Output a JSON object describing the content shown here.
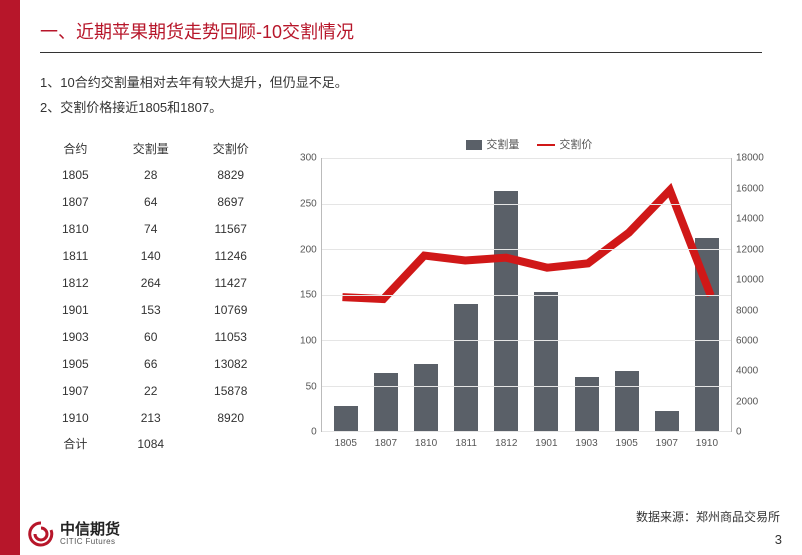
{
  "brand_color": "#b7162a",
  "title": "一、近期苹果期货走势回顾-10交割情况",
  "bullets": [
    "1、10合约交割量相对去年有较大提升，但仍显不足。",
    "2、交割价格接近1805和1807。"
  ],
  "table": {
    "headers": [
      "合约",
      "交割量",
      "交割价"
    ],
    "rows": [
      [
        "1805",
        "28",
        "8829"
      ],
      [
        "1807",
        "64",
        "8697"
      ],
      [
        "1810",
        "74",
        "11567"
      ],
      [
        "1811",
        "140",
        "11246"
      ],
      [
        "1812",
        "264",
        "11427"
      ],
      [
        "1901",
        "153",
        "10769"
      ],
      [
        "1903",
        "60",
        "11053"
      ],
      [
        "1905",
        "66",
        "13082"
      ],
      [
        "1907",
        "22",
        "15878"
      ],
      [
        "1910",
        "213",
        "8920"
      ]
    ],
    "footer": [
      "合计",
      "1084",
      ""
    ]
  },
  "chart": {
    "type": "bar+line",
    "legend": {
      "bar": "交割量",
      "line": "交割价"
    },
    "categories": [
      "1805",
      "1807",
      "1810",
      "1811",
      "1812",
      "1901",
      "1903",
      "1905",
      "1907",
      "1910"
    ],
    "bar_values": [
      28,
      64,
      74,
      140,
      264,
      153,
      60,
      66,
      22,
      213
    ],
    "line_values": [
      8829,
      8697,
      11567,
      11246,
      11427,
      10769,
      11053,
      13082,
      15878,
      8920
    ],
    "bar_color": "#5a6068",
    "line_color": "#d01818",
    "y_left": {
      "min": 0,
      "max": 300,
      "step": 50
    },
    "y_right": {
      "min": 0,
      "max": 18000,
      "step": 2000
    },
    "grid_color": "#e5e5e5",
    "axis_color": "#bbbbbb",
    "background_color": "#ffffff",
    "label_fontsize": 10
  },
  "source_label": "数据来源：郑州商品交易所",
  "logo": {
    "cn": "中信期货",
    "en": "CITIC Futures"
  },
  "page_number": "3"
}
